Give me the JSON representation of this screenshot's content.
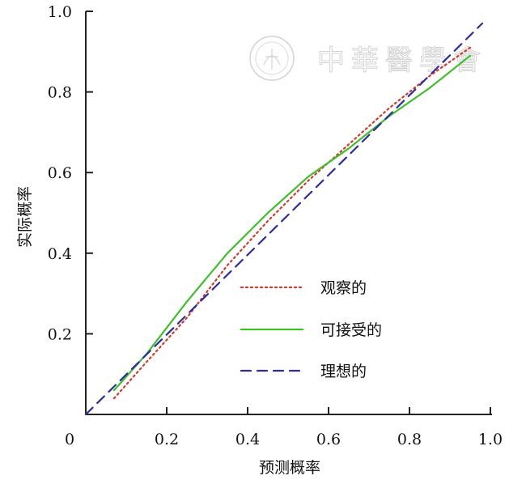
{
  "chart_data": {
    "type": "line",
    "title": "",
    "xlabel": "预测概率",
    "ylabel": "实际概率",
    "xlim": [
      0,
      1.0
    ],
    "ylim": [
      0,
      1.0
    ],
    "x_ticks": [
      0.2,
      0.4,
      0.6,
      0.8,
      1.0
    ],
    "x_tick_labels": [
      "0.2",
      "0.4",
      "0.6",
      "0.8",
      "1.0"
    ],
    "y_ticks": [
      0.2,
      0.4,
      0.6,
      0.8,
      1.0
    ],
    "y_tick_labels": [
      "0.2",
      "0.4",
      "0.6",
      "0.8",
      "1.0"
    ],
    "origin_label": "0",
    "grid": false,
    "legend_position": "lower-right",
    "series": [
      {
        "name": "观察的",
        "color": "#d23a2a",
        "style": "dotted",
        "x": [
          0.07,
          0.15,
          0.25,
          0.35,
          0.45,
          0.55,
          0.65,
          0.75,
          0.85,
          0.95
        ],
        "y": [
          0.04,
          0.13,
          0.24,
          0.37,
          0.48,
          0.58,
          0.67,
          0.76,
          0.84,
          0.91
        ]
      },
      {
        "name": "可接受的",
        "color": "#3fbf2a",
        "style": "solid",
        "x": [
          0.07,
          0.15,
          0.25,
          0.35,
          0.45,
          0.55,
          0.65,
          0.75,
          0.85,
          0.95
        ],
        "y": [
          0.06,
          0.15,
          0.28,
          0.4,
          0.5,
          0.59,
          0.66,
          0.74,
          0.81,
          0.89
        ]
      },
      {
        "name": "理想的",
        "color": "#2e2e9e",
        "style": "dashed",
        "x": [
          0.0,
          0.98
        ],
        "y": [
          0.0,
          0.97
        ]
      }
    ]
  },
  "watermark": {
    "text": "中華醫學會"
  }
}
